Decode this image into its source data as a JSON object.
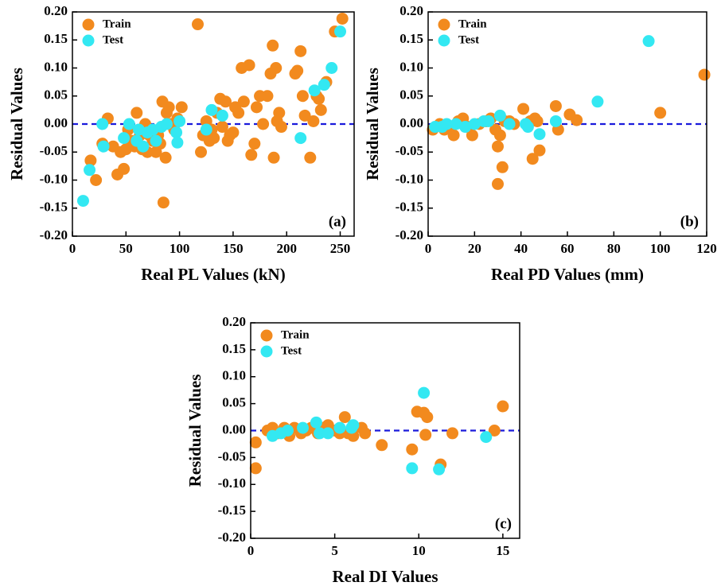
{
  "chart_data": [
    {
      "type": "scatter",
      "x_label": "Real PL Values (kN)",
      "y_label": "Residual Values",
      "annotation": "(a)",
      "xlim": [
        0,
        263
      ],
      "xticks": [
        0,
        50,
        100,
        150,
        200,
        250
      ],
      "ylim": [
        -0.2,
        0.2
      ],
      "yticks": [
        {
          "value": -0.2,
          "label": "-0.20"
        },
        {
          "value": -0.15,
          "label": "-0.15"
        },
        {
          "value": -0.1,
          "label": "-0.10"
        },
        {
          "value": -0.05,
          "label": "-0.05"
        },
        {
          "value": 0,
          "label": "0.00"
        },
        {
          "value": 0.05,
          "label": "0.05"
        },
        {
          "value": 0.1,
          "label": "0.10"
        },
        {
          "value": 0.15,
          "label": "0.15"
        },
        {
          "value": 0.2,
          "label": "0.20"
        }
      ],
      "hline": {
        "value": 0,
        "color": "#1a1adb"
      },
      "legend": "upper left",
      "series": [
        {
          "name": "Train",
          "color": "#f28a1e",
          "x": [
            17,
            22,
            28,
            33,
            38,
            42,
            45,
            48,
            50,
            52,
            55,
            58,
            60,
            63,
            65,
            68,
            70,
            72,
            75,
            78,
            80,
            82,
            84,
            85,
            87,
            88,
            90,
            92,
            95,
            98,
            102,
            117,
            120,
            122,
            125,
            128,
            130,
            132,
            135,
            138,
            140,
            143,
            145,
            147,
            150,
            152,
            155,
            158,
            160,
            165,
            167,
            170,
            172,
            175,
            178,
            182,
            185,
            187,
            188,
            190,
            191,
            193,
            195,
            208,
            210,
            213,
            215,
            217,
            222,
            225,
            228,
            232,
            237,
            245,
            252,
            230
          ],
          "values": [
            -0.065,
            -0.1,
            -0.035,
            0.01,
            -0.04,
            -0.09,
            -0.05,
            -0.08,
            -0.045,
            -0.01,
            -0.03,
            -0.04,
            0.02,
            -0.02,
            -0.045,
            0,
            -0.05,
            -0.02,
            -0.03,
            -0.05,
            -0.02,
            -0.035,
            0.04,
            -0.14,
            -0.06,
            0.02,
            0.03,
            0,
            -0.01,
            0.01,
            0.03,
            0.178,
            -0.05,
            -0.02,
            0.005,
            -0.03,
            -0.01,
            -0.025,
            0.02,
            0.045,
            -0.005,
            0.04,
            -0.03,
            -0.02,
            -0.015,
            0.03,
            0.02,
            0.1,
            0.04,
            0.105,
            -0.055,
            -0.035,
            0.03,
            0.05,
            0,
            0.05,
            0.09,
            0.14,
            -0.06,
            0.1,
            0.005,
            0.02,
            -0.005,
            0.09,
            0.095,
            0.13,
            0.05,
            0.015,
            -0.06,
            0.005,
            0.05,
            0.025,
            0.075,
            0.165,
            0.188,
            0.045
          ]
        },
        {
          "name": "Test",
          "color": "#33e8f2",
          "x": [
            10,
            16,
            28,
            29,
            48,
            53,
            60,
            62,
            66,
            70,
            75,
            78,
            83,
            88,
            97,
            98,
            100,
            125,
            130,
            140,
            213,
            226,
            235,
            242,
            250
          ],
          "values": [
            -0.137,
            -0.082,
            0,
            -0.04,
            -0.025,
            0,
            -0.03,
            -0.01,
            -0.04,
            -0.015,
            -0.01,
            -0.03,
            -0.005,
            0,
            -0.015,
            -0.033,
            0.005,
            -0.01,
            0.025,
            0.015,
            -0.025,
            0.06,
            0.07,
            0.1,
            0.165
          ]
        }
      ]
    },
    {
      "type": "scatter",
      "x_label": "Real PD Values (mm)",
      "y_label": "Residual Values",
      "annotation": "(b)",
      "xlim": [
        0,
        120
      ],
      "xticks": [
        0,
        20,
        40,
        60,
        80,
        100,
        120
      ],
      "ylim": [
        -0.2,
        0.2
      ],
      "yticks": [
        {
          "value": -0.2,
          "label": "-0.20"
        },
        {
          "value": -0.15,
          "label": "-0.15"
        },
        {
          "value": -0.1,
          "label": "-0.10"
        },
        {
          "value": -0.05,
          "label": "-0.05"
        },
        {
          "value": 0,
          "label": "0.00"
        },
        {
          "value": 0.05,
          "label": "0.05"
        },
        {
          "value": 0.1,
          "label": "0.10"
        },
        {
          "value": 0.15,
          "label": "0.15"
        },
        {
          "value": 0.2,
          "label": "0.20"
        }
      ],
      "hline": {
        "value": 0,
        "color": "#1a1adb"
      },
      "legend": "upper left",
      "series": [
        {
          "name": "Train",
          "color": "#f28a1e",
          "x": [
            2,
            5,
            7,
            9,
            11,
            13,
            15,
            17,
            19,
            22,
            25,
            27,
            29,
            30,
            30,
            31,
            32,
            33,
            35,
            37,
            41,
            44,
            45,
            46,
            47,
            48,
            55,
            56,
            61,
            64,
            100,
            119
          ],
          "values": [
            -0.01,
            0,
            -0.01,
            -0.005,
            -0.02,
            0.005,
            0.01,
            -0.005,
            -0.02,
            0,
            0.005,
            0.01,
            -0.01,
            -0.04,
            -0.107,
            -0.02,
            -0.077,
            0.005,
            0.005,
            0,
            0.027,
            0.005,
            -0.062,
            0.01,
            0.005,
            -0.047,
            0.032,
            -0.01,
            0.017,
            0.007,
            0.02,
            0.088
          ]
        },
        {
          "name": "Test",
          "color": "#33e8f2",
          "x": [
            3,
            6,
            8,
            12,
            16,
            20,
            24,
            26,
            31,
            35,
            42,
            43,
            48,
            55,
            73,
            95
          ],
          "values": [
            -0.005,
            -0.005,
            0,
            0,
            -0.005,
            0,
            0.005,
            0.005,
            0.015,
            0,
            0,
            -0.005,
            -0.018,
            0.005,
            0.04,
            0.148
          ]
        }
      ]
    },
    {
      "type": "scatter",
      "x_label": "Real DI Values",
      "y_label": "Residual Values",
      "annotation": "(c)",
      "xlim": [
        0,
        16
      ],
      "xticks": [
        0,
        5,
        10,
        15
      ],
      "ylim": [
        -0.2,
        0.2
      ],
      "yticks": [
        {
          "value": -0.2,
          "label": "-0.20"
        },
        {
          "value": -0.15,
          "label": "-0.15"
        },
        {
          "value": -0.1,
          "label": "-0.10"
        },
        {
          "value": -0.05,
          "label": "-0.05"
        },
        {
          "value": 0,
          "label": "0.00"
        },
        {
          "value": 0.05,
          "label": "0.05"
        },
        {
          "value": 0.1,
          "label": "0.10"
        },
        {
          "value": 0.15,
          "label": "0.15"
        },
        {
          "value": 0.2,
          "label": "0.20"
        }
      ],
      "hline": {
        "value": 0,
        "color": "#1a1adb"
      },
      "legend": "upper left",
      "series": [
        {
          "name": "Train",
          "color": "#f28a1e",
          "x": [
            0.3,
            0.3,
            1.0,
            1.3,
            1.6,
            2.0,
            2.3,
            2.6,
            3.0,
            3.3,
            3.6,
            4.0,
            4.3,
            4.6,
            5.0,
            5.3,
            5.6,
            5.8,
            6.1,
            6.6,
            6.8,
            7.8,
            9.6,
            9.9,
            10.3,
            10.4,
            10.5,
            11.3,
            12.0,
            14.5,
            15.0
          ],
          "values": [
            -0.022,
            -0.07,
            0,
            0.005,
            -0.005,
            0.005,
            -0.01,
            0.005,
            -0.005,
            0,
            0.005,
            -0.005,
            0.005,
            0.01,
            0,
            -0.005,
            0.025,
            -0.005,
            -0.01,
            0.005,
            -0.005,
            -0.027,
            -0.035,
            0.035,
            0.033,
            -0.008,
            0.025,
            -0.063,
            -0.005,
            0,
            0.045
          ]
        },
        {
          "name": "Test",
          "color": "#33e8f2",
          "x": [
            1.3,
            1.8,
            2.2,
            3.1,
            3.9,
            4.1,
            4.6,
            5.3,
            6.0,
            6.1,
            9.6,
            10.3,
            11.2,
            14.0
          ],
          "values": [
            -0.01,
            -0.005,
            0,
            0.005,
            0.015,
            -0.005,
            -0.005,
            0.005,
            0.005,
            0.01,
            -0.07,
            0.07,
            -0.072,
            -0.012
          ]
        }
      ]
    }
  ]
}
